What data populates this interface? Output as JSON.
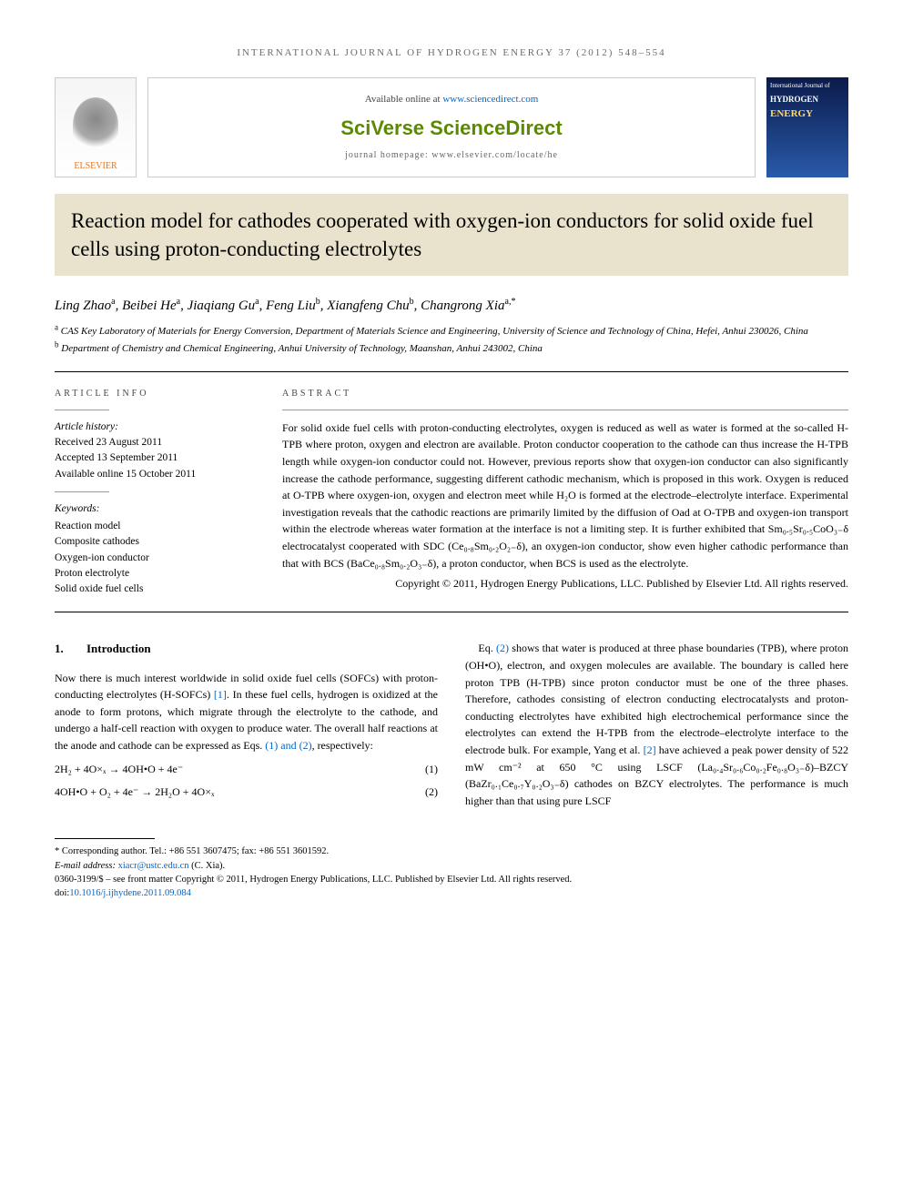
{
  "journal_header": "INTERNATIONAL JOURNAL OF HYDROGEN ENERGY 37 (2012) 548–554",
  "top": {
    "available": "Available online at ",
    "available_link": "www.sciencedirect.com",
    "sciverse": "SciVerse ScienceDirect",
    "homepage": "journal homepage: www.elsevier.com/locate/he",
    "elsevier_label": "ELSEVIER",
    "cover_line1": "International Journal of",
    "cover_line2": "HYDROGEN",
    "cover_line3": "ENERGY"
  },
  "title": "Reaction model for cathodes cooperated with oxygen-ion conductors for solid oxide fuel cells using proton-conducting electrolytes",
  "authors_html": "Ling Zhao<sup>a</sup>, Beibei He<sup>a</sup>, Jiaqiang Gu<sup>a</sup>, Feng Liu<sup>b</sup>, Xiangfeng Chu<sup>b</sup>, Changrong Xia<sup>a,*</sup>",
  "affiliations": {
    "a": "CAS Key Laboratory of Materials for Energy Conversion, Department of Materials Science and Engineering, University of Science and Technology of China, Hefei, Anhui 230026, China",
    "b": "Department of Chemistry and Chemical Engineering, Anhui University of Technology, Maanshan, Anhui 243002, China"
  },
  "info": {
    "label": "ARTICLE INFO",
    "history_label": "Article history:",
    "received": "Received 23 August 2011",
    "accepted": "Accepted 13 September 2011",
    "online": "Available online 15 October 2011",
    "keywords_label": "Keywords:",
    "keywords": [
      "Reaction model",
      "Composite cathodes",
      "Oxygen-ion conductor",
      "Proton electrolyte",
      "Solid oxide fuel cells"
    ]
  },
  "abstract": {
    "label": "ABSTRACT",
    "text": "For solid oxide fuel cells with proton-conducting electrolytes, oxygen is reduced as well as water is formed at the so-called H-TPB where proton, oxygen and electron are available. Proton conductor cooperation to the cathode can thus increase the H-TPB length while oxygen-ion conductor could not. However, previous reports show that oxygen-ion conductor can also significantly increase the cathode performance, suggesting different cathodic mechanism, which is proposed in this work. Oxygen is reduced at O-TPB where oxygen-ion, oxygen and electron meet while H₂O is formed at the electrode–electrolyte interface. Experimental investigation reveals that the cathodic reactions are primarily limited by the diffusion of Oad at O-TPB and oxygen-ion transport within the electrode whereas water formation at the interface is not a limiting step. It is further exhibited that Sm₀.₅Sr₀.₅CoO₃₋δ electrocatalyst cooperated with SDC (Ce₀.₈Sm₀.₂O₂₋δ), an oxygen-ion conductor, show even higher cathodic performance than that with BCS (BaCe₀.₈Sm₀.₂O₃₋δ), a proton conductor, when BCS is used as the electrolyte.",
    "copyright": "Copyright © 2011, Hydrogen Energy Publications, LLC. Published by Elsevier Ltd. All rights reserved."
  },
  "intro": {
    "num": "1.",
    "heading": "Introduction",
    "p1a": "Now there is much interest worldwide in solid oxide fuel cells (SOFCs) with proton-conducting electrolytes (H-SOFCs) ",
    "ref1": "[1]",
    "p1b": ". In these fuel cells, hydrogen is oxidized at the anode to form protons, which migrate through the electrolyte to the cathode, and undergo a half-cell reaction with oxygen to produce water. The overall half reactions at the anode and cathode can be expressed as Eqs. ",
    "eqref": "(1) and (2)",
    "p1c": ", respectively:",
    "eq1": "2H₂ + 4O×ₓ → 4OH•O + 4e⁻",
    "eq1_num": "(1)",
    "eq2": "4OH•O + O₂ + 4e⁻ → 2H₂O + 4O×ₓ",
    "eq2_num": "(2)",
    "p2a": "Eq. ",
    "ref2": "(2)",
    "p2b": " shows that water is produced at three phase boundaries (TPB), where proton (OH•O), electron, and oxygen molecules are available. The boundary is called here proton TPB (H-TPB) since proton conductor must be one of the three phases. Therefore, cathodes consisting of electron conducting electrocatalysts and proton-conducting electrolytes have exhibited high electrochemical performance since the electrolytes can extend the H-TPB from the electrode–electrolyte interface to the electrode bulk. For example, Yang et al. ",
    "ref2b": "[2]",
    "p2c": " have achieved a peak power density of 522 mW cm⁻² at 650 °C using LSCF (La₀.₄Sr₀.₆Co₀.₂Fe₀.₈O₃₋δ)–BZCY (BaZr₀.₁Ce₀.₇Y₀.₂O₃₋δ) cathodes on BZCY electrolytes. The performance is much higher than that using pure LSCF"
  },
  "footer": {
    "corresponding": "* Corresponding author. Tel.: +86 551 3607475; fax: +86 551 3601592.",
    "email_label": "E-mail address: ",
    "email": "xiacr@ustc.edu.cn",
    "email_suffix": " (C. Xia).",
    "copyright_line": "0360-3199/$ – see front matter Copyright © 2011, Hydrogen Energy Publications, LLC. Published by Elsevier Ltd. All rights reserved.",
    "doi_label": "doi:",
    "doi": "10.1016/j.ijhydene.2011.09.084"
  },
  "colors": {
    "title_bg": "#e9e3cd",
    "link": "#0066cc",
    "sciverse": "#5b8a00",
    "elsevier": "#e8751a",
    "cover_bg_top": "#0b1a4a",
    "cover_bg_bottom": "#2a5aaa",
    "cover_accent": "#ffd966"
  }
}
